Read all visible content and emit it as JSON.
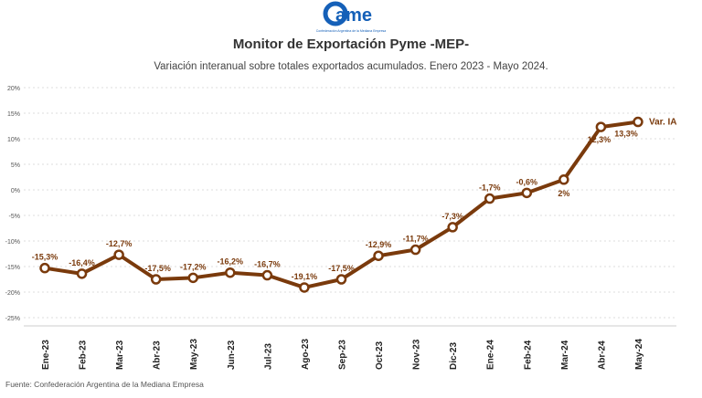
{
  "logo": {
    "text": "ame",
    "tagline": "Confederación Argentina de la Mediana Empresa"
  },
  "colors": {
    "line": "#7a3a0c",
    "label": "#7a3a0c",
    "grid": "#dddddd",
    "logo": "#1560b8"
  },
  "chart_data": {
    "type": "line",
    "title": "Monitor de Exportación Pyme -MEP-",
    "subtitle": "Variación interanual sobre totales exportados acumulados. Enero 2023 - Mayo 2024.",
    "categories": [
      "Ene-23",
      "Feb-23",
      "Mar-23",
      "Abr-23",
      "May-23",
      "Jun-23",
      "Jul-23",
      "Ago-23",
      "Sep-23",
      "Oct-23",
      "Nov-23",
      "Dic-23",
      "Ene-24",
      "Feb-24",
      "Mar-24",
      "Abr-24",
      "May-24"
    ],
    "series": [
      {
        "name": "Var. IA",
        "values": [
          -15.3,
          -16.4,
          -12.7,
          -17.5,
          -17.2,
          -16.2,
          -16.7,
          -19.1,
          -17.5,
          -12.9,
          -11.7,
          -7.3,
          -1.7,
          -0.6,
          2,
          12.3,
          13.3
        ]
      }
    ],
    "data_labels": [
      "-15,3%",
      "-16,4%",
      "-12,7%",
      "-17,5%",
      "-17,2%",
      "-16,2%",
      "-16,7%",
      "-19,1%",
      "-17,5%",
      "-12,9%",
      "-11,7%",
      "-7,3%",
      "-1,7%",
      "-0,6%",
      "2%",
      "12,3%",
      "13,3%"
    ],
    "yticks": [
      20,
      15,
      10,
      5,
      0,
      -5,
      -10,
      -15,
      -20,
      -25
    ],
    "ytick_labels": [
      "20%",
      "15%",
      "10%",
      "5%",
      "0%",
      "-5%",
      "-10%",
      "-15%",
      "-20%",
      "-25%"
    ],
    "ylim": [
      -25,
      20
    ],
    "grid": true,
    "legend": "right-end label"
  },
  "source": "Fuente: Confederación Argentina de la Mediana Empresa"
}
